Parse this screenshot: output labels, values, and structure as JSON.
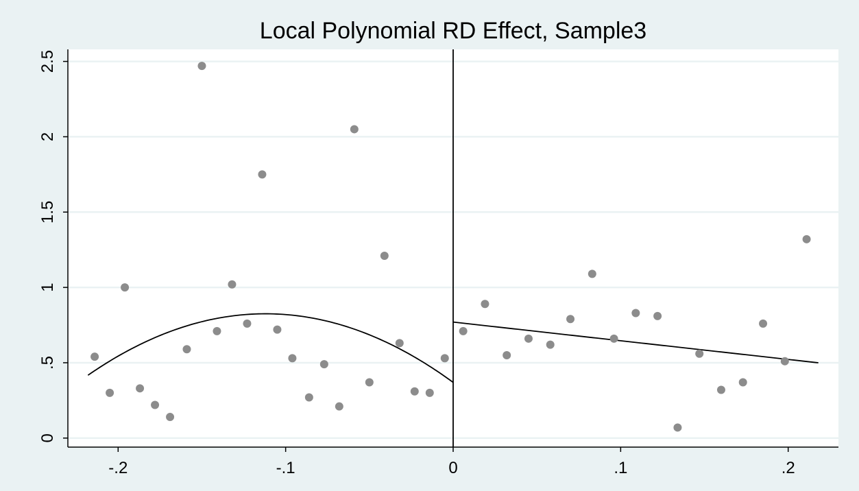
{
  "chart_data": {
    "type": "scatter",
    "title": "Local Polynomial RD Effect, Sample3",
    "xlabel": "",
    "ylabel": "",
    "xlim": [
      -0.23,
      0.23
    ],
    "ylim": [
      -0.06,
      2.58
    ],
    "x_ticks": [
      {
        "value": -0.2,
        "label": "-.2"
      },
      {
        "value": -0.1,
        "label": "-.1"
      },
      {
        "value": 0,
        "label": "0"
      },
      {
        "value": 0.1,
        "label": ".1"
      },
      {
        "value": 0.2,
        "label": ".2"
      }
    ],
    "y_ticks": [
      {
        "value": 0,
        "label": "0"
      },
      {
        "value": 0.5,
        "label": ".5"
      },
      {
        "value": 1,
        "label": "1"
      },
      {
        "value": 1.5,
        "label": "1.5"
      },
      {
        "value": 2,
        "label": "2"
      },
      {
        "value": 2.5,
        "label": "2.5"
      }
    ],
    "grid": true,
    "cutoff": 0,
    "scatter_points": {
      "x": [
        -0.214,
        -0.205,
        -0.196,
        -0.187,
        -0.178,
        -0.169,
        -0.159,
        -0.15,
        -0.141,
        -0.132,
        -0.123,
        -0.114,
        -0.105,
        -0.096,
        -0.086,
        -0.077,
        -0.068,
        -0.059,
        -0.05,
        -0.041,
        -0.032,
        -0.023,
        -0.014,
        -0.005,
        0.006,
        0.019,
        0.032,
        0.045,
        0.058,
        0.07,
        0.083,
        0.096,
        0.109,
        0.122,
        0.134,
        0.147,
        0.16,
        0.173,
        0.185,
        0.198,
        0.211
      ],
      "y": [
        0.54,
        0.3,
        1.0,
        0.33,
        0.22,
        0.14,
        0.59,
        2.47,
        0.71,
        1.02,
        0.76,
        1.75,
        0.72,
        0.53,
        0.27,
        0.49,
        0.21,
        2.05,
        0.37,
        1.21,
        0.63,
        0.31,
        0.3,
        0.53,
        0.71,
        0.89,
        0.55,
        0.66,
        0.62,
        0.79,
        1.09,
        0.66,
        0.83,
        0.81,
        0.07,
        0.56,
        0.32,
        0.37,
        0.76,
        0.51,
        1.32
      ]
    },
    "fit_lines": [
      {
        "segment": "left",
        "type": "quadratic",
        "x_range": [
          -0.218,
          0
        ],
        "vertex_x": -0.112,
        "vertex_y": 0.825,
        "a": -36.3
      },
      {
        "segment": "right",
        "type": "linear",
        "x_range": [
          0,
          0.218
        ],
        "intercept": 0.77,
        "slope": -1.24
      }
    ],
    "colors": {
      "background": "#eaf2f3",
      "plot_area": "#ffffff",
      "grid": "#eaf2f3",
      "points": "#8c8c8c",
      "lines": "#000000"
    }
  }
}
